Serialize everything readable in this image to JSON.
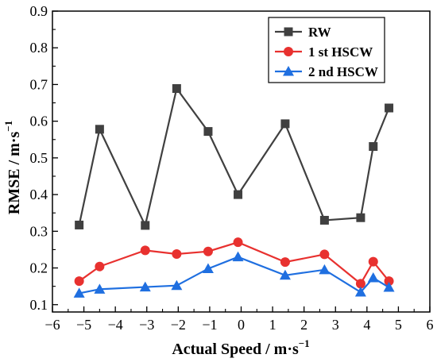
{
  "chart_data": {
    "type": "line",
    "xlabel": "Actual Speed / m·s",
    "xlabel_exp": "−1",
    "ylabel": "RMSE / m·s",
    "ylabel_exp": "−1",
    "xlim": [
      -6,
      6
    ],
    "ylim": [
      0.08,
      0.9
    ],
    "xticks": [
      -6,
      -5,
      -4,
      -3,
      -2,
      -1,
      0,
      1,
      2,
      3,
      4,
      5,
      6
    ],
    "xtick_labels": [
      "−6",
      "−5",
      "−4",
      "−3",
      "−2",
      "−1",
      "0",
      "1",
      "2",
      "3",
      "4",
      "5",
      "6"
    ],
    "yticks": [
      0.1,
      0.2,
      0.3,
      0.4,
      0.5,
      0.6,
      0.7,
      0.8,
      0.9
    ],
    "ytick_labels": [
      "0.1",
      "0.2",
      "0.3",
      "0.4",
      "0.5",
      "0.6",
      "0.7",
      "0.8",
      "0.9"
    ],
    "grid": false,
    "legend_position": "top-right",
    "series": [
      {
        "name": "RW",
        "color": "#404040",
        "marker": "square",
        "x": [
          -5.15,
          -4.5,
          -3.05,
          -2.05,
          -1.05,
          -0.1,
          1.4,
          2.65,
          3.8,
          4.2,
          4.7
        ],
        "y": [
          0.317,
          0.578,
          0.316,
          0.689,
          0.572,
          0.4,
          0.593,
          0.33,
          0.337,
          0.531,
          0.636
        ]
      },
      {
        "name": "1 st HSCW",
        "color": "#e8312f",
        "marker": "circle",
        "x": [
          -5.15,
          -4.5,
          -3.05,
          -2.05,
          -1.05,
          -0.1,
          1.4,
          2.65,
          3.8,
          4.2,
          4.7
        ],
        "y": [
          0.164,
          0.204,
          0.248,
          0.238,
          0.245,
          0.27,
          0.216,
          0.237,
          0.157,
          0.217,
          0.164
        ]
      },
      {
        "name": "2 nd HSCW",
        "color": "#1f6fe0",
        "marker": "triangle",
        "x": [
          -5.15,
          -4.5,
          -3.05,
          -2.05,
          -1.05,
          -0.1,
          1.4,
          2.65,
          3.8,
          4.2,
          4.7
        ],
        "y": [
          0.131,
          0.142,
          0.148,
          0.152,
          0.198,
          0.23,
          0.18,
          0.195,
          0.134,
          0.173,
          0.147
        ]
      }
    ]
  }
}
